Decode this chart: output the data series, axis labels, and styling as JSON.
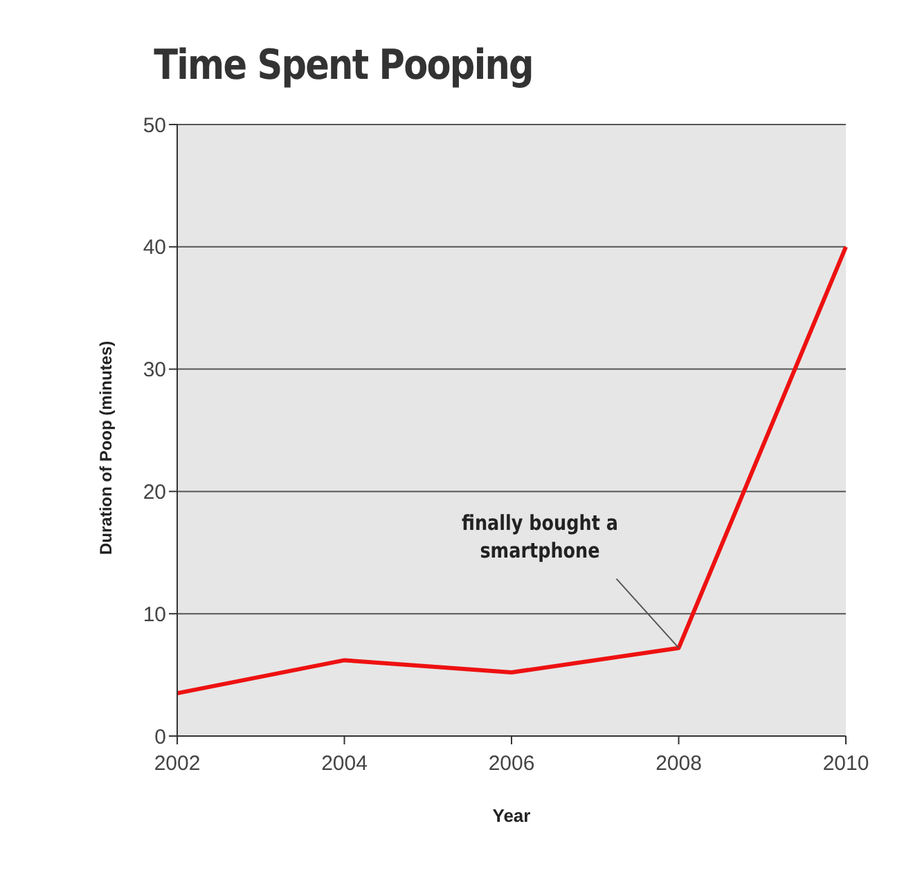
{
  "chart_data": {
    "type": "line",
    "title": "Time Spent Pooping",
    "xlabel": "Year",
    "ylabel": "Duration of Poop (minutes)",
    "categories": [
      "2002",
      "2004",
      "2006",
      "2008",
      "2010"
    ],
    "series": [
      {
        "color": "#ee1111",
        "values": [
          3.5,
          6.2,
          5.2,
          7.2,
          40
        ]
      }
    ],
    "ylim": [
      0,
      50
    ],
    "yticks": [
      0,
      10,
      20,
      30,
      40,
      50
    ],
    "grid": "y",
    "marker": "none",
    "line_style": "solid",
    "legend": false,
    "annotations": [
      {
        "text": "finally bought a smartphone",
        "x": "2008",
        "y": 7.2
      }
    ]
  }
}
